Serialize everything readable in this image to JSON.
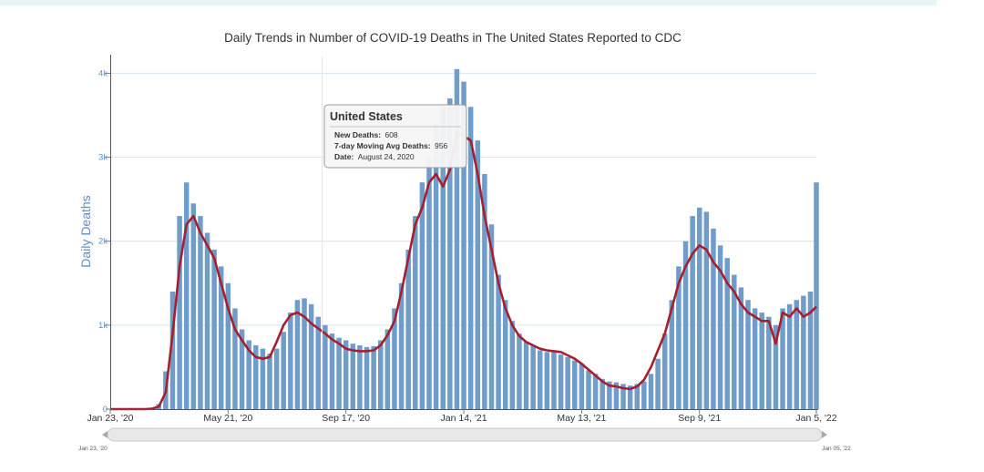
{
  "chart_data": {
    "type": "bar",
    "title": "Daily Trends in Number of COVID-19 Deaths in The United States Reported to CDC",
    "ylabel": "Daily Deaths",
    "xlabel": "",
    "ylim": [
      0,
      4200
    ],
    "yticks": [
      {
        "value": 0,
        "label": "0"
      },
      {
        "value": 1000,
        "label": "1k"
      },
      {
        "value": 2000,
        "label": "2k"
      },
      {
        "value": 3000,
        "label": "3k"
      },
      {
        "value": 4000,
        "label": "4k"
      }
    ],
    "xrange": [
      "2020-01-23",
      "2022-01-05"
    ],
    "xticks": [
      {
        "date": "2020-01-23",
        "label": "Jan 23, '20"
      },
      {
        "date": "2020-05-21",
        "label": "May 21, '20"
      },
      {
        "date": "2020-09-17",
        "label": "Sep 17, '20"
      },
      {
        "date": "2021-01-14",
        "label": "Jan 14, '21"
      },
      {
        "date": "2021-05-13",
        "label": "May 13, '21"
      },
      {
        "date": "2021-09-09",
        "label": "Sep 9, '21"
      },
      {
        "date": "2022-01-05",
        "label": "Jan 5, '22"
      }
    ],
    "grid": true,
    "series": [
      {
        "name": "New Deaths",
        "type": "bar",
        "color": "#6f9cc9",
        "interval_days": 7,
        "x": [
          "2020-01-23",
          "2020-01-30",
          "2020-02-06",
          "2020-02-13",
          "2020-02-20",
          "2020-02-27",
          "2020-03-05",
          "2020-03-12",
          "2020-03-19",
          "2020-03-26",
          "2020-04-02",
          "2020-04-09",
          "2020-04-16",
          "2020-04-23",
          "2020-04-30",
          "2020-05-07",
          "2020-05-14",
          "2020-05-21",
          "2020-05-28",
          "2020-06-04",
          "2020-06-11",
          "2020-06-18",
          "2020-06-25",
          "2020-07-02",
          "2020-07-09",
          "2020-07-16",
          "2020-07-23",
          "2020-07-30",
          "2020-08-06",
          "2020-08-13",
          "2020-08-20",
          "2020-08-27",
          "2020-09-03",
          "2020-09-10",
          "2020-09-17",
          "2020-09-24",
          "2020-10-01",
          "2020-10-08",
          "2020-10-15",
          "2020-10-22",
          "2020-10-29",
          "2020-11-05",
          "2020-11-12",
          "2020-11-19",
          "2020-11-26",
          "2020-12-03",
          "2020-12-10",
          "2020-12-17",
          "2020-12-24",
          "2020-12-31",
          "2021-01-07",
          "2021-01-14",
          "2021-01-21",
          "2021-01-28",
          "2021-02-04",
          "2021-02-11",
          "2021-02-18",
          "2021-02-25",
          "2021-03-04",
          "2021-03-11",
          "2021-03-18",
          "2021-03-25",
          "2021-04-01",
          "2021-04-08",
          "2021-04-15",
          "2021-04-22",
          "2021-04-29",
          "2021-05-06",
          "2021-05-13",
          "2021-05-20",
          "2021-05-27",
          "2021-06-03",
          "2021-06-10",
          "2021-06-17",
          "2021-06-24",
          "2021-07-01",
          "2021-07-08",
          "2021-07-15",
          "2021-07-22",
          "2021-07-29",
          "2021-08-05",
          "2021-08-12",
          "2021-08-19",
          "2021-08-26",
          "2021-09-02",
          "2021-09-09",
          "2021-09-16",
          "2021-09-23",
          "2021-09-30",
          "2021-10-07",
          "2021-10-14",
          "2021-10-21",
          "2021-10-28",
          "2021-11-04",
          "2021-11-11",
          "2021-11-18",
          "2021-11-25",
          "2021-12-02",
          "2021-12-09",
          "2021-12-16",
          "2021-12-23",
          "2021-12-30",
          "2022-01-05"
        ],
        "values": [
          0,
          0,
          0,
          0,
          0,
          0,
          10,
          60,
          450,
          1400,
          2300,
          2700,
          2450,
          2300,
          2100,
          1900,
          1700,
          1500,
          1200,
          950,
          820,
          760,
          720,
          660,
          720,
          920,
          1150,
          1300,
          1320,
          1250,
          1100,
          1000,
          900,
          850,
          820,
          780,
          760,
          740,
          750,
          820,
          950,
          1200,
          1500,
          1900,
          2300,
          2700,
          3000,
          3400,
          3600,
          3700,
          4050,
          3900,
          3600,
          3200,
          2800,
          2200,
          1600,
          1300,
          1050,
          900,
          800,
          760,
          700,
          680,
          700,
          650,
          620,
          580,
          540,
          460,
          420,
          360,
          330,
          320,
          300,
          280,
          300,
          330,
          420,
          600,
          900,
          1300,
          1700,
          2000,
          2300,
          2400,
          2350,
          2150,
          1950,
          1800,
          1600,
          1450,
          1300,
          1200,
          1150,
          1100,
          1000,
          1200,
          1250,
          1300,
          1350,
          1400,
          2700
        ]
      },
      {
        "name": "7-day Moving Avg Deaths",
        "type": "line",
        "color": "#a5202e",
        "x": [
          "2020-01-23",
          "2020-02-06",
          "2020-02-27",
          "2020-03-05",
          "2020-03-12",
          "2020-03-19",
          "2020-03-26",
          "2020-04-02",
          "2020-04-09",
          "2020-04-16",
          "2020-04-23",
          "2020-04-30",
          "2020-05-07",
          "2020-05-14",
          "2020-05-21",
          "2020-05-28",
          "2020-06-04",
          "2020-06-11",
          "2020-06-18",
          "2020-06-25",
          "2020-07-02",
          "2020-07-09",
          "2020-07-16",
          "2020-07-23",
          "2020-07-30",
          "2020-08-06",
          "2020-08-13",
          "2020-08-20",
          "2020-08-27",
          "2020-09-03",
          "2020-09-10",
          "2020-09-17",
          "2020-09-24",
          "2020-10-01",
          "2020-10-08",
          "2020-10-15",
          "2020-10-22",
          "2020-10-29",
          "2020-11-05",
          "2020-11-12",
          "2020-11-19",
          "2020-11-26",
          "2020-12-03",
          "2020-12-10",
          "2020-12-17",
          "2020-12-24",
          "2020-12-31",
          "2021-01-07",
          "2021-01-14",
          "2021-01-21",
          "2021-01-28",
          "2021-02-04",
          "2021-02-11",
          "2021-02-18",
          "2021-02-25",
          "2021-03-04",
          "2021-03-11",
          "2021-03-18",
          "2021-03-25",
          "2021-04-01",
          "2021-04-08",
          "2021-04-15",
          "2021-04-22",
          "2021-04-29",
          "2021-05-06",
          "2021-05-13",
          "2021-05-20",
          "2021-05-27",
          "2021-06-03",
          "2021-06-10",
          "2021-06-17",
          "2021-06-24",
          "2021-07-01",
          "2021-07-08",
          "2021-07-15",
          "2021-07-22",
          "2021-07-29",
          "2021-08-05",
          "2021-08-12",
          "2021-08-19",
          "2021-08-26",
          "2021-09-02",
          "2021-09-09",
          "2021-09-16",
          "2021-09-23",
          "2021-09-30",
          "2021-10-07",
          "2021-10-14",
          "2021-10-21",
          "2021-10-28",
          "2021-11-04",
          "2021-11-11",
          "2021-11-18",
          "2021-11-25",
          "2021-12-02",
          "2021-12-09",
          "2021-12-16",
          "2021-12-23",
          "2021-12-30",
          "2022-01-05"
        ],
        "values": [
          0,
          0,
          0,
          5,
          30,
          200,
          900,
          1700,
          2200,
          2300,
          2100,
          1950,
          1800,
          1500,
          1200,
          950,
          820,
          700,
          620,
          600,
          620,
          800,
          1000,
          1120,
          1150,
          1100,
          1020,
          960,
          900,
          830,
          780,
          720,
          700,
          690,
          690,
          700,
          760,
          880,
          1050,
          1400,
          1800,
          2200,
          2400,
          2700,
          2800,
          2650,
          2850,
          3300,
          3250,
          3200,
          2800,
          2300,
          1900,
          1500,
          1200,
          1000,
          870,
          800,
          760,
          720,
          700,
          690,
          680,
          640,
          600,
          540,
          470,
          400,
          330,
          280,
          270,
          250,
          240,
          270,
          350,
          500,
          700,
          900,
          1200,
          1500,
          1700,
          1850,
          1950,
          1900,
          1750,
          1650,
          1500,
          1400,
          1250,
          1150,
          1100,
          1050,
          1050,
          780,
          1150,
          1100,
          1200,
          1100,
          1150,
          1220
        ]
      }
    ],
    "tooltip": {
      "title": "United States",
      "rows": [
        {
          "label": "New Deaths:",
          "value": "608"
        },
        {
          "label": "7-day Moving Avg Deaths:",
          "value": "956"
        },
        {
          "label": "Date:",
          "value": "August 24, 2020"
        }
      ]
    },
    "navigator": {
      "start_label": "Jan 23, '20",
      "end_label": "Jan 05, '22"
    }
  }
}
